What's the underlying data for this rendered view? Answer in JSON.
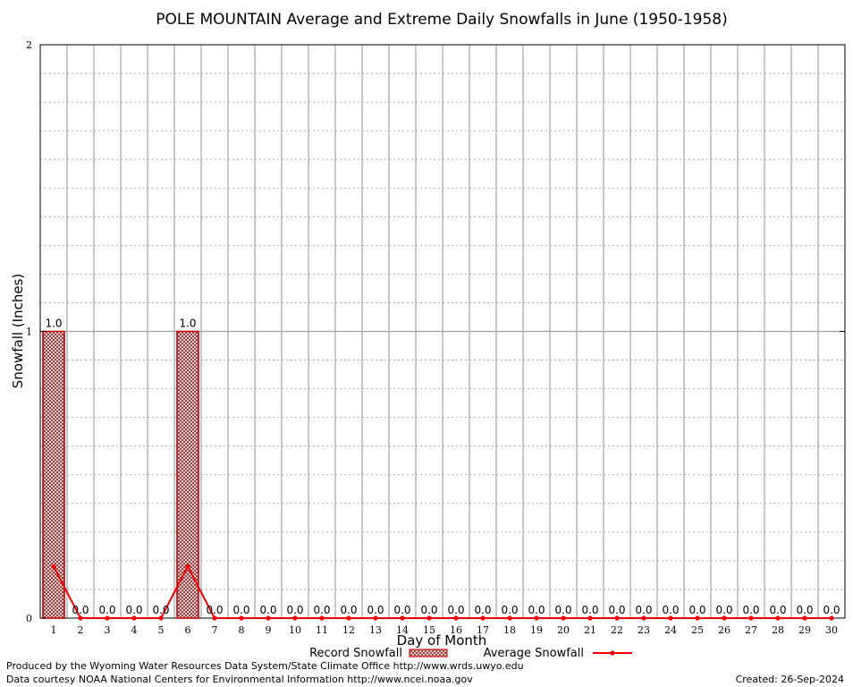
{
  "chart_data": {
    "type": "bar",
    "title": "POLE MOUNTAIN Average and Extreme Daily Snowfalls in June (1950-1958)",
    "xlabel": "Day of Month",
    "ylabel": "Snowfall (Inches)",
    "ylim": [
      0,
      2
    ],
    "yticks": [
      "0",
      "1",
      "2"
    ],
    "categories": [
      "1",
      "2",
      "3",
      "4",
      "5",
      "6",
      "7",
      "8",
      "9",
      "10",
      "11",
      "12",
      "13",
      "14",
      "15",
      "16",
      "17",
      "18",
      "19",
      "20",
      "21",
      "22",
      "23",
      "24",
      "25",
      "26",
      "27",
      "28",
      "29",
      "30"
    ],
    "series": [
      {
        "name": "Record Snowfall",
        "type": "bar",
        "values": [
          1.0,
          0,
          0,
          0,
          0,
          1.0,
          0,
          0,
          0,
          0,
          0,
          0,
          0,
          0,
          0,
          0,
          0,
          0,
          0,
          0,
          0,
          0,
          0,
          0,
          0,
          0,
          0,
          0,
          0,
          0
        ],
        "labels": [
          "1.0",
          "0.0",
          "0.0",
          "0.0",
          "0.0",
          "1.0",
          "0.0",
          "0.0",
          "0.0",
          "0.0",
          "0.0",
          "0.0",
          "0.0",
          "0.0",
          "0.0",
          "0.0",
          "0.0",
          "0.0",
          "0.0",
          "0.0",
          "0.0",
          "0.0",
          "0.0",
          "0.0",
          "0.0",
          "0.0",
          "0.0",
          "0.0",
          "0.0",
          "0.0"
        ],
        "color": "#cc0000"
      },
      {
        "name": "Average Snowfall",
        "type": "line",
        "values": [
          0.18,
          0,
          0,
          0,
          0,
          0.18,
          0,
          0,
          0,
          0,
          0,
          0,
          0,
          0,
          0,
          0,
          0,
          0,
          0,
          0,
          0,
          0,
          0,
          0,
          0,
          0,
          0,
          0,
          0,
          0
        ],
        "color": "#ee0000"
      }
    ],
    "grid": true,
    "legend": "bottom-center"
  },
  "footer": {
    "left_line1": "Produced by the Wyoming Water Resources Data System/State Climate Office http://www.wrds.uwyo.edu",
    "left_line2": "Data courtesy NOAA National Centers for Environmental Information http://www.ncei.noaa.gov",
    "created": "Created: 26-Sep-2024"
  }
}
